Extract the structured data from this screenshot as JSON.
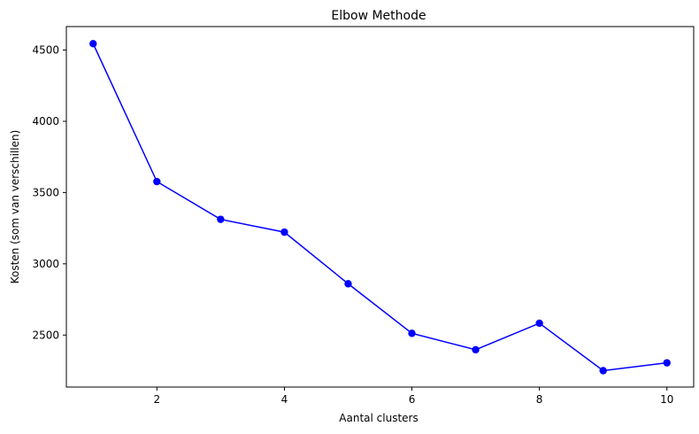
{
  "chart_data": {
    "type": "line",
    "title": "Elbow Methode",
    "xlabel": "Aantal clusters",
    "ylabel": "Kosten (som van verschillen)",
    "x": [
      1,
      2,
      3,
      4,
      5,
      6,
      7,
      8,
      9,
      10
    ],
    "series": [
      {
        "values": [
          4545,
          3577,
          3312,
          3222,
          2860,
          2512,
          2397,
          2583,
          2250,
          2305
        ],
        "color": "#0000ff",
        "marker": "circle"
      }
    ],
    "xlim": [
      0.58,
      10.42
    ],
    "ylim": [
      2135,
      4665
    ],
    "xticks": [
      2,
      4,
      6,
      8,
      10
    ],
    "yticks": [
      2500,
      3000,
      3500,
      4000,
      4500
    ],
    "grid": false,
    "legend": "none"
  }
}
